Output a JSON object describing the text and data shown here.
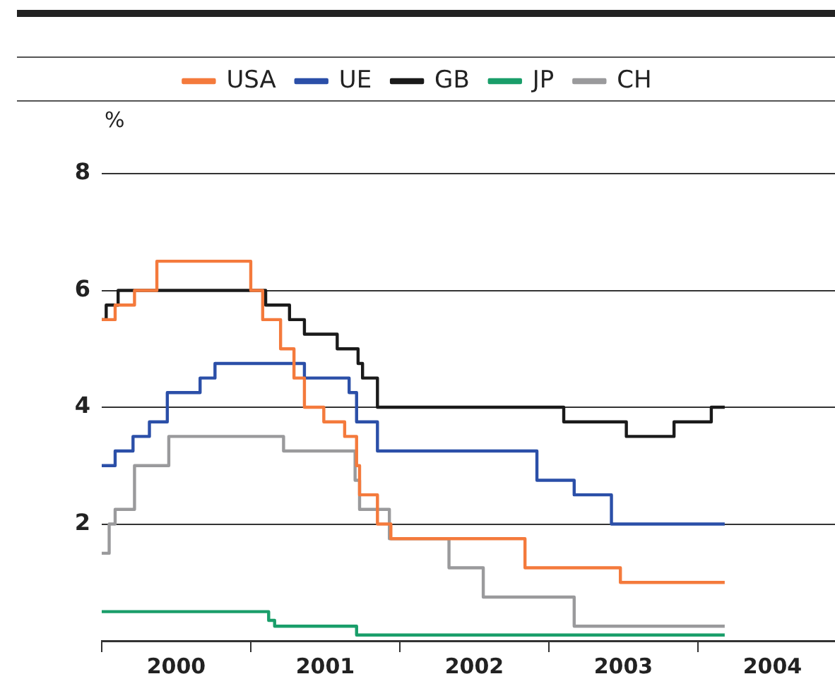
{
  "chart_data": {
    "type": "step",
    "ylabel": "%",
    "legend": "top",
    "grid": "y",
    "line_style": "solid",
    "xlim": [
      2000,
      2004.92
    ],
    "xticks": [
      {
        "value": 2000,
        "label": null
      },
      {
        "value": 2000.5,
        "label": "2000"
      },
      {
        "value": 2001,
        "label": null
      },
      {
        "value": 2001.5,
        "label": "2001"
      },
      {
        "value": 2002,
        "label": null
      },
      {
        "value": 2002.5,
        "label": "2002"
      },
      {
        "value": 2003,
        "label": null
      },
      {
        "value": 2003.5,
        "label": "2003"
      },
      {
        "value": 2004,
        "label": null
      },
      {
        "value": 2004.5,
        "label": "2004"
      }
    ],
    "ylim": [
      0,
      8
    ],
    "yticks": [
      2,
      4,
      6,
      8
    ],
    "series": [
      {
        "name": "USA",
        "color": "#f47a3c",
        "x": [
          2000,
          2000.09,
          2000.22,
          2000.37,
          2001.0,
          2001.08,
          2001.2,
          2001.29,
          2001.36,
          2001.49,
          2001.63,
          2001.71,
          2001.73,
          2001.85,
          2001.94,
          2002.84,
          2003.48,
          2004.18
        ],
        "values": [
          5.5,
          5.75,
          6,
          6.5,
          6,
          5.5,
          5,
          4.5,
          4,
          3.75,
          3.5,
          3,
          2.5,
          2,
          1.75,
          1.25,
          1,
          1
        ]
      },
      {
        "name": "UE",
        "color": "#2b4fa8",
        "x": [
          2000,
          2000.09,
          2000.21,
          2000.32,
          2000.44,
          2000.66,
          2000.76,
          2001.36,
          2001.66,
          2001.71,
          2001.85,
          2002.92,
          2003.17,
          2003.42,
          2004.18
        ],
        "values": [
          3,
          3.25,
          3.5,
          3.75,
          4.25,
          4.5,
          4.75,
          4.5,
          4.25,
          3.75,
          3.25,
          2.75,
          2.5,
          2,
          2
        ]
      },
      {
        "name": "GB",
        "color": "#1a1a1a",
        "x": [
          2000,
          2000.03,
          2000.11,
          2001.1,
          2001.26,
          2001.36,
          2001.58,
          2001.72,
          2001.75,
          2001.85,
          2003.1,
          2003.52,
          2003.84,
          2004.09,
          2004.18
        ],
        "values": [
          5.5,
          5.75,
          6,
          5.75,
          5.5,
          5.25,
          5,
          4.75,
          4.5,
          4,
          3.75,
          3.5,
          3.75,
          4,
          4
        ]
      },
      {
        "name": "JP",
        "color": "#1a9e6a",
        "x": [
          2000,
          2001.12,
          2001.16,
          2001.71,
          2004.18
        ],
        "values": [
          0.5,
          0.35,
          0.25,
          0.1,
          0.1
        ]
      },
      {
        "name": "CH",
        "color": "#9a9a9c",
        "x": [
          2000,
          2000.05,
          2000.09,
          2000.22,
          2000.45,
          2001.22,
          2001.7,
          2001.73,
          2001.93,
          2002.33,
          2002.56,
          2003.17,
          2004.18
        ],
        "values": [
          1.5,
          2,
          2.25,
          3,
          3.5,
          3.25,
          2.75,
          2.25,
          1.75,
          1.25,
          0.75,
          0.25,
          0.25
        ]
      }
    ]
  }
}
